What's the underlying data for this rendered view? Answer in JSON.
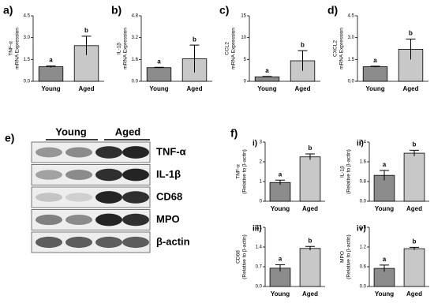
{
  "chart_data": [
    {
      "type": "bar",
      "panel": "a)",
      "ylabel": [
        "TNF-α",
        "mRNA Expression"
      ],
      "categories": [
        "Young",
        "Aged"
      ],
      "values": [
        1.0,
        2.45
      ],
      "errors": [
        0.05,
        0.65
      ],
      "annotations": [
        "a",
        "b"
      ],
      "colors": [
        "#8c8c8c",
        "#c8c8c8"
      ],
      "ylim": [
        0,
        4.5
      ],
      "yticks": [
        {
          "value": 0,
          "label": "0.0"
        },
        1.5,
        {
          "value": 3,
          "label": "3.0"
        },
        4.5
      ]
    },
    {
      "type": "bar",
      "panel": "b)",
      "ylabel": [
        "IL-1β",
        "mRNA Expression"
      ],
      "categories": [
        "Young",
        "Aged"
      ],
      "values": [
        1.0,
        1.65
      ],
      "errors": [
        0.03,
        1.0
      ],
      "annotations": [
        "a",
        "b"
      ],
      "colors": [
        "#8c8c8c",
        "#c8c8c8"
      ],
      "ylim": [
        0,
        4.8
      ],
      "yticks": [
        {
          "value": 0,
          "label": "0.0"
        },
        1.6,
        3.2,
        4.8
      ]
    },
    {
      "type": "bar",
      "panel": "c)",
      "ylabel": [
        "CCL2",
        "mRNA Expression"
      ],
      "categories": [
        "Young",
        "Aged"
      ],
      "values": [
        1.0,
        4.7
      ],
      "errors": [
        0.1,
        2.3
      ],
      "annotations": [
        "a",
        "b"
      ],
      "colors": [
        "#8c8c8c",
        "#c8c8c8"
      ],
      "ylim": [
        0,
        15
      ],
      "yticks": [
        0,
        5,
        10,
        15
      ]
    },
    {
      "type": "bar",
      "panel": "d)",
      "ylabel": [
        "CXCL2",
        "mRNA Expression"
      ],
      "categories": [
        "Young",
        "Aged"
      ],
      "values": [
        1.0,
        2.2
      ],
      "errors": [
        0.04,
        0.7
      ],
      "annotations": [
        "a",
        "b"
      ],
      "colors": [
        "#8c8c8c",
        "#c8c8c8"
      ],
      "ylim": [
        0,
        4.5
      ],
      "yticks": [
        {
          "value": 0,
          "label": "0.0"
        },
        1.5,
        {
          "value": 3,
          "label": "3.0"
        },
        4.5
      ]
    },
    {
      "type": "bar",
      "panel": "i)",
      "ylabel": [
        "TNF-α",
        "(Relative to β-actin)"
      ],
      "categories": [
        "Young",
        "Aged"
      ],
      "values": [
        0.95,
        2.25
      ],
      "errors": [
        0.12,
        0.15
      ],
      "annotations": [
        "a",
        "b"
      ],
      "colors": [
        "#8c8c8c",
        "#c8c8c8"
      ],
      "ylim": [
        0,
        3
      ],
      "yticks": [
        0,
        1,
        2,
        3
      ]
    },
    {
      "type": "bar",
      "panel": "ii)",
      "ylabel": [
        "IL-1β",
        "(Relative to β-actin)"
      ],
      "categories": [
        "Young",
        "Aged"
      ],
      "values": [
        1.05,
        1.95
      ],
      "errors": [
        0.2,
        0.12
      ],
      "annotations": [
        "a",
        "b"
      ],
      "colors": [
        "#8c8c8c",
        "#c8c8c8"
      ],
      "ylim": [
        0,
        2.4
      ],
      "yticks": [
        {
          "value": 0,
          "label": "0.0"
        },
        0.8,
        1.6,
        2.4
      ]
    },
    {
      "type": "bar",
      "panel": "iii)",
      "ylabel": [
        "CD68",
        "(Relative to β-actin)"
      ],
      "categories": [
        "Young",
        "Aged"
      ],
      "values": [
        0.65,
        1.35
      ],
      "errors": [
        0.12,
        0.07
      ],
      "annotations": [
        "a",
        "b"
      ],
      "colors": [
        "#8c8c8c",
        "#c8c8c8"
      ],
      "ylim": [
        0,
        2.1
      ],
      "yticks": [
        {
          "value": 0,
          "label": "0.0"
        },
        0.7,
        1.4,
        2.1
      ]
    },
    {
      "type": "bar",
      "panel": "iv)",
      "ylabel": [
        "MPO",
        "(Relative to β-actin)"
      ],
      "categories": [
        "Young",
        "Aged"
      ],
      "values": [
        0.55,
        1.15
      ],
      "errors": [
        0.1,
        0.04
      ],
      "annotations": [
        "a",
        "b"
      ],
      "colors": [
        "#8c8c8c",
        "#c8c8c8"
      ],
      "ylim": [
        0,
        1.8
      ],
      "yticks": [
        {
          "value": 0,
          "label": "0.0"
        },
        0.6,
        1.2,
        1.8
      ]
    }
  ],
  "panel_f": "f)",
  "blot": {
    "panel": "e)",
    "groups": [
      "Young",
      "Aged"
    ],
    "bands": [
      "TNF-α",
      "IL-1β",
      "CD68",
      "MPO",
      "β-actin"
    ]
  }
}
